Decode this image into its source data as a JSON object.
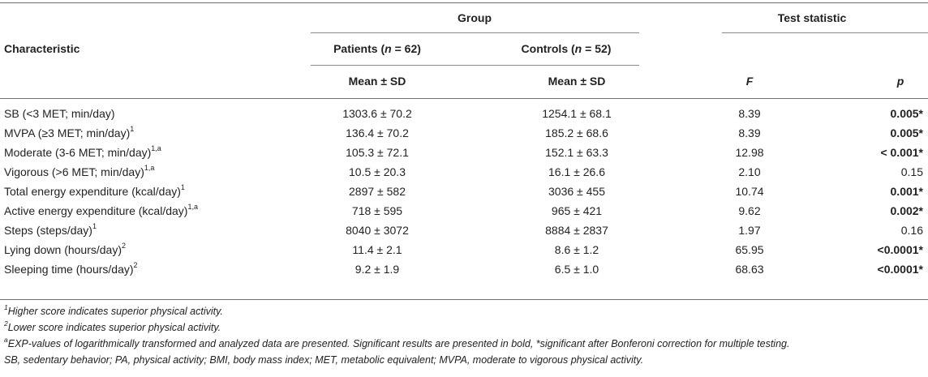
{
  "header": {
    "group_label": "Group",
    "test_statistic_label": "Test statistic",
    "characteristic_label": "Characteristic",
    "patients_label": "Patients",
    "patients_n": "62",
    "controls_label": "Controls",
    "controls_n": "52",
    "n_symbol": "n",
    "equals": " = ",
    "mean_sd_label": "Mean ± SD",
    "f_label": "F",
    "p_label": "p"
  },
  "rows": [
    {
      "label": "SB (<3 MET; min/day)",
      "sup": "",
      "patients": "1303.6 ± 70.2",
      "controls": "1254.1 ± 68.1",
      "f": "8.39",
      "p": "0.005*",
      "p_bold": true
    },
    {
      "label": "MVPA (≥3 MET; min/day)",
      "sup": "1",
      "patients": "136.4 ± 70.2",
      "controls": "185.2 ± 68.6",
      "f": "8.39",
      "p": "0.005*",
      "p_bold": true
    },
    {
      "label": "Moderate (3-6 MET; min/day)",
      "sup": "1,a",
      "patients": "105.3 ± 72.1",
      "controls": "152.1 ± 63.3",
      "f": "12.98",
      "p": "< 0.001*",
      "p_bold": true
    },
    {
      "label": "Vigorous (>6 MET; min/day)",
      "sup": "1,a",
      "patients": "10.5 ± 20.3",
      "controls": "16.1 ± 26.6",
      "f": "2.10",
      "p": "0.15",
      "p_bold": false
    },
    {
      "label": "Total energy expenditure (kcal/day)",
      "sup": "1",
      "patients": "2897 ± 582",
      "controls": "3036 ± 455",
      "f": "10.74",
      "p": "0.001*",
      "p_bold": true
    },
    {
      "label": "Active energy expenditure (kcal/day)",
      "sup": "1,a",
      "patients": "718 ± 595",
      "controls": "965 ± 421",
      "f": "9.62",
      "p": "0.002*",
      "p_bold": true
    },
    {
      "label": "Steps (steps/day)",
      "sup": "1",
      "patients": "8040 ± 3072",
      "controls": "8884 ± 2837",
      "f": "1.97",
      "p": "0.16",
      "p_bold": false
    },
    {
      "label": "Lying down (hours/day)",
      "sup": "2",
      "patients": "11.4 ± 2.1",
      "controls": "8.6 ± 1.2",
      "f": "65.95",
      "p": "<0.0001*",
      "p_bold": true
    },
    {
      "label": "Sleeping time (hours/day)",
      "sup": "2",
      "patients": "9.2 ± 1.9",
      "controls": "6.5 ± 1.0",
      "f": "68.63",
      "p": "<0.0001*",
      "p_bold": true
    }
  ],
  "footnotes": [
    {
      "sup": "1",
      "text": "Higher score indicates superior physical activity."
    },
    {
      "sup": "2",
      "text": "Lower score indicates superior physical activity."
    },
    {
      "sup": "a",
      "text": "EXP-values of logarithmically transformed and analyzed data are presented. Significant results are presented in bold, *significant after Bonferoni correction for multiple testing."
    },
    {
      "sup": "",
      "text": "SB, sedentary behavior; PA, physical activity; BMI, body mass index; MET, metabolic equivalent; MVPA, moderate to vigorous physical activity."
    }
  ]
}
